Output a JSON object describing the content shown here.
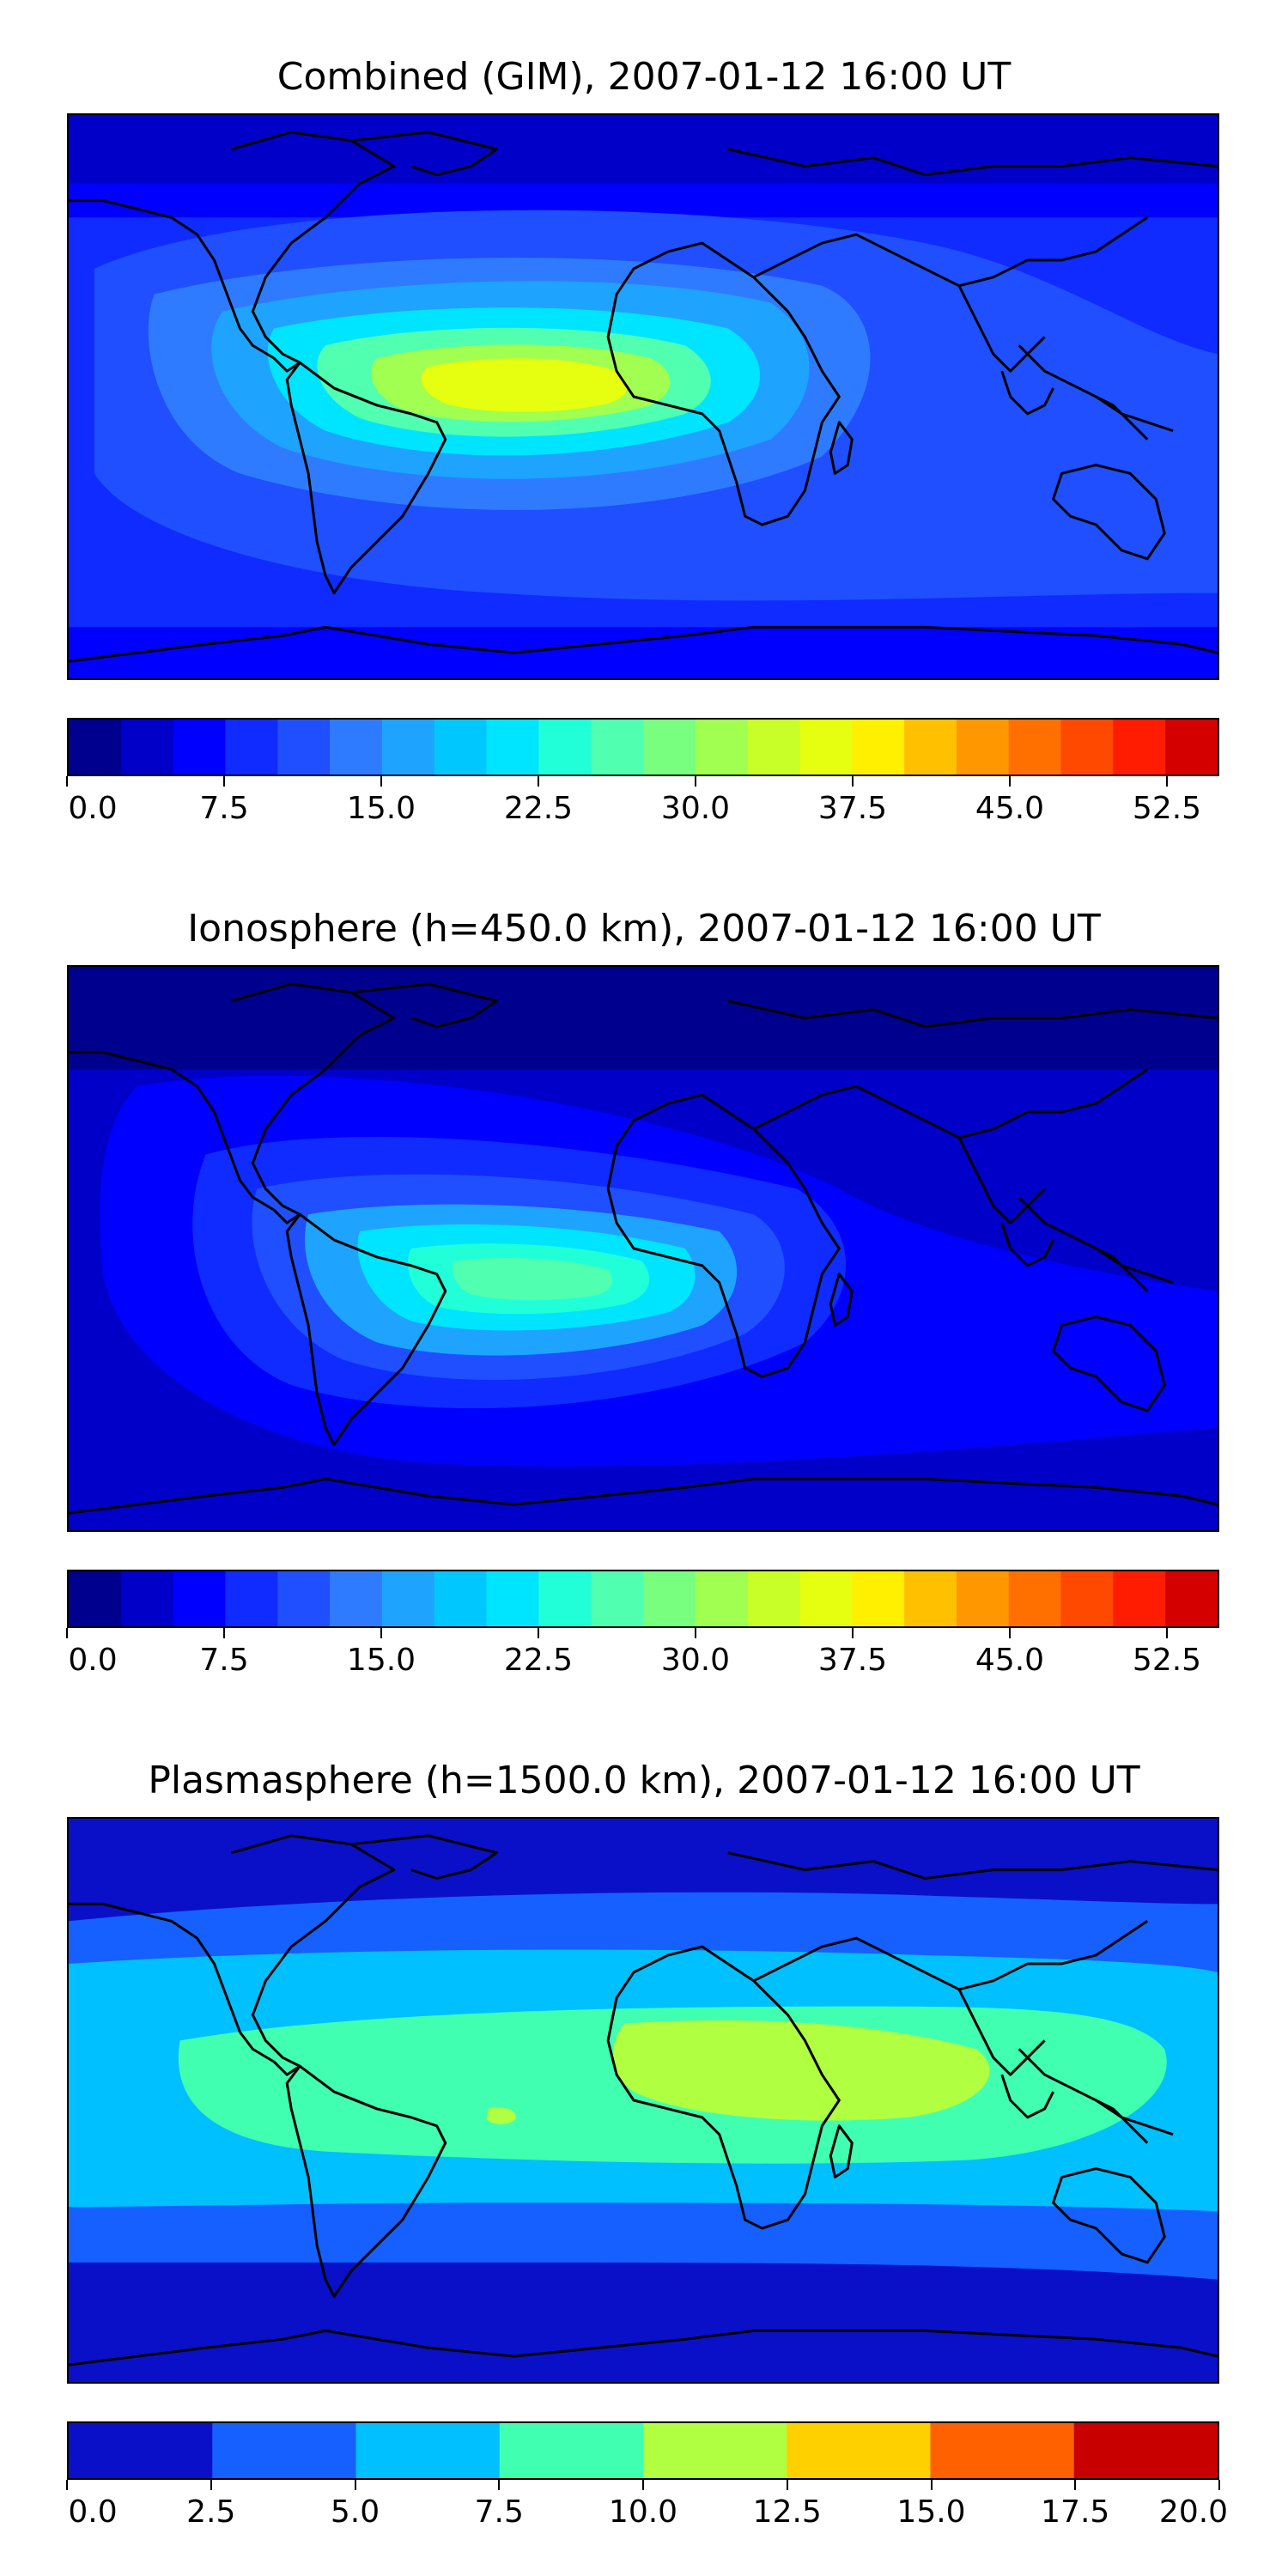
{
  "chart_data": [
    {
      "type": "heatmap",
      "title": "Combined (GIM), 2007-01-12 16:00 UT",
      "colorbar": {
        "ticks": [
          "0.0",
          "7.5",
          "15.0",
          "22.5",
          "30.0",
          "37.5",
          "45.0",
          "52.5"
        ],
        "levels": [
          0,
          2.5,
          5,
          7.5,
          10,
          12.5,
          15,
          17.5,
          20,
          22.5,
          25,
          27.5,
          30,
          32.5,
          35,
          37.5,
          40,
          42.5,
          45,
          47.5,
          50,
          52.5,
          55
        ],
        "vmin": 0,
        "vmax": 55,
        "colors": [
          "#00008f",
          "#0000c8",
          "#0000ff",
          "#0f2bff",
          "#1f4fff",
          "#2f7bff",
          "#1ea4ff",
          "#00c8ff",
          "#00e5ff",
          "#20ffd8",
          "#50ffb0",
          "#78ff80",
          "#a0ff50",
          "#c8ff28",
          "#e6ff10",
          "#fff000",
          "#ffc000",
          "#ff9800",
          "#ff7000",
          "#ff4800",
          "#ff1c00",
          "#d40000",
          "#8f0000"
        ]
      },
      "summary": {
        "background_max": 7,
        "peak_value": 36,
        "peak_location": "South Atlantic"
      }
    },
    {
      "type": "heatmap",
      "title": "Ionosphere  (h=450.0 km), 2007-01-12 16:00 UT",
      "colorbar": {
        "ticks": [
          "0.0",
          "7.5",
          "15.0",
          "22.5",
          "30.0",
          "37.5",
          "45.0",
          "52.5"
        ],
        "levels": [
          0,
          2.5,
          5,
          7.5,
          10,
          12.5,
          15,
          17.5,
          20,
          22.5,
          25,
          27.5,
          30,
          32.5,
          35,
          37.5,
          40,
          42.5,
          45,
          47.5,
          50,
          52.5,
          55
        ],
        "vmin": 0,
        "vmax": 55,
        "colors": [
          "#00008f",
          "#0000c8",
          "#0000ff",
          "#0f2bff",
          "#1f4fff",
          "#2f7bff",
          "#1ea4ff",
          "#00c8ff",
          "#00e5ff",
          "#20ffd8",
          "#50ffb0",
          "#78ff80",
          "#a0ff50",
          "#c8ff28",
          "#e6ff10",
          "#fff000",
          "#ffc000",
          "#ff9800",
          "#ff7000",
          "#ff4800",
          "#ff1c00",
          "#d40000",
          "#8f0000"
        ]
      },
      "summary": {
        "background_max": 5,
        "peak_value": 27,
        "peak_location": "South Atlantic"
      }
    },
    {
      "type": "heatmap",
      "title": "Plasmasphere (h=1500.0 km), 2007-01-12 16:00 UT",
      "colorbar": {
        "ticks": [
          "0.0",
          "2.5",
          "5.0",
          "7.5",
          "10.0",
          "12.5",
          "15.0",
          "17.5",
          "20.0"
        ],
        "levels": [
          0,
          2.5,
          5,
          7.5,
          10,
          12.5,
          15,
          17.5,
          20
        ],
        "vmin": 0,
        "vmax": 20,
        "colors": [
          "#0a10c8",
          "#1560ff",
          "#00c0ff",
          "#40ffb0",
          "#b0ff40",
          "#ffd000",
          "#ff6000",
          "#c80000"
        ]
      },
      "summary": {
        "background_max": 2.5,
        "peak_value": 12,
        "peak_location": "Northern Africa to Indian Ocean"
      }
    }
  ]
}
